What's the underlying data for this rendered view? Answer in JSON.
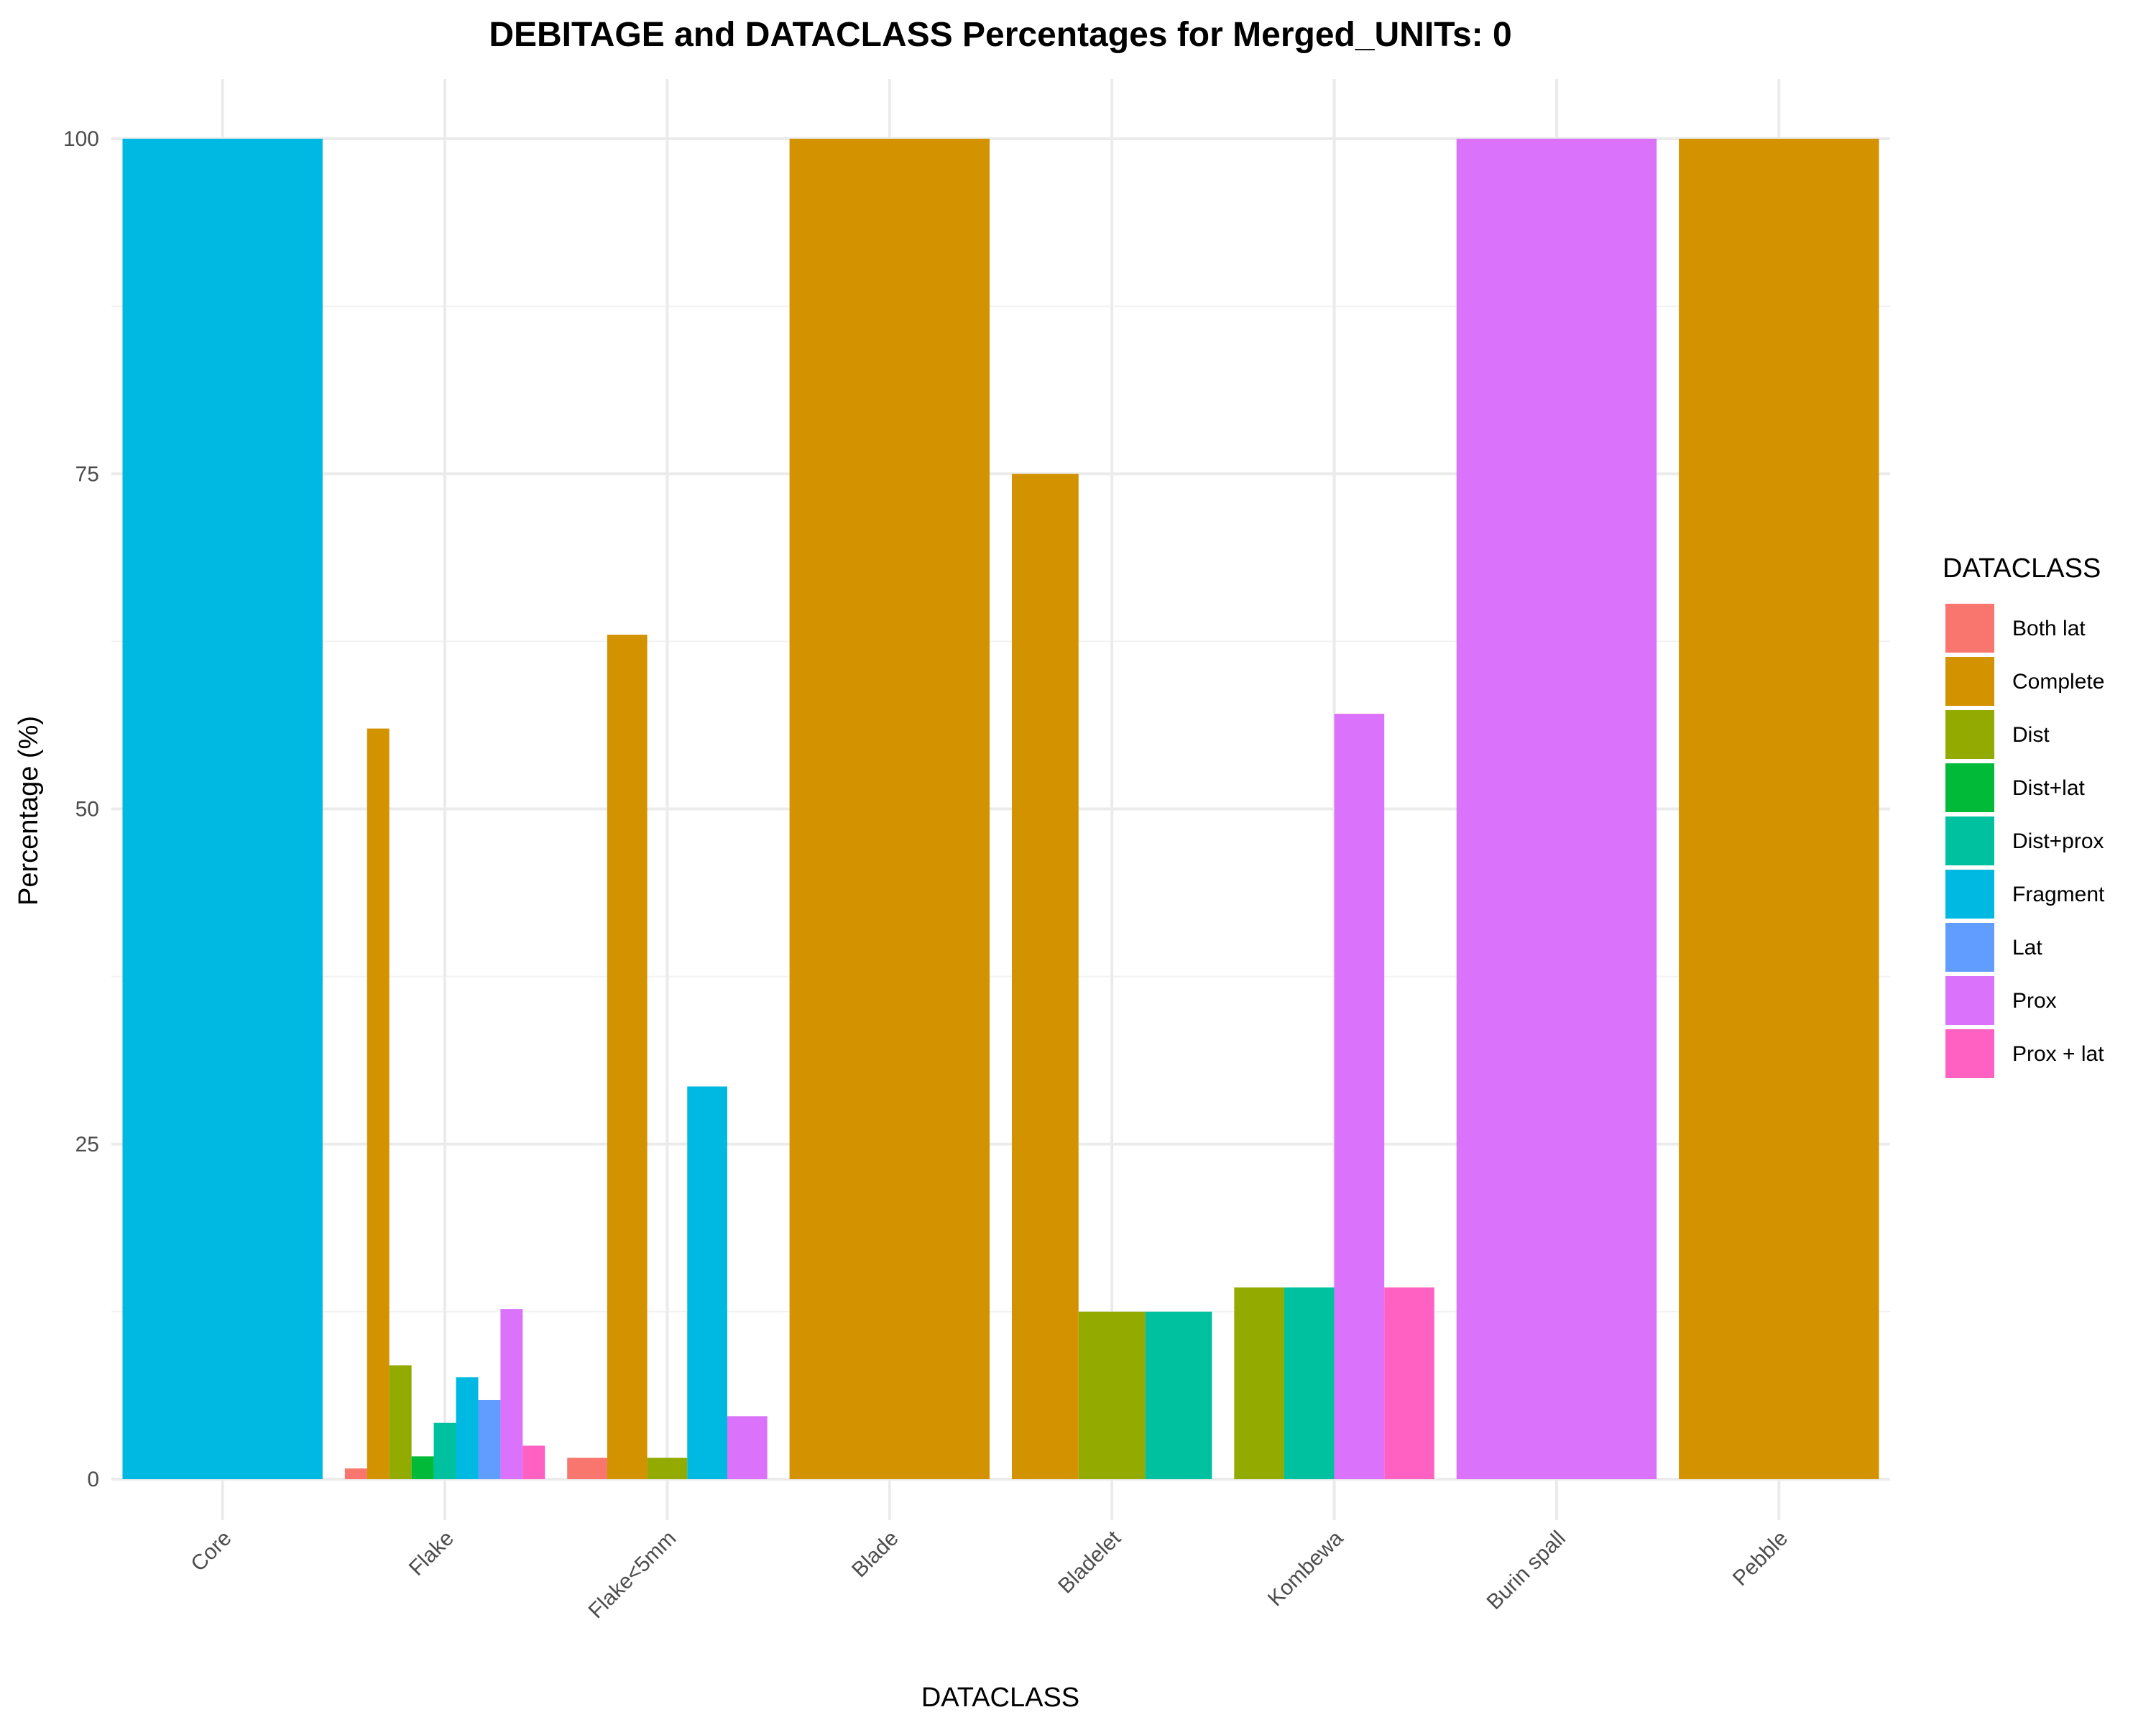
{
  "chart_data": {
    "type": "bar",
    "title": "DEBITAGE and DATACLASS Percentages for Merged_UNITs: 0",
    "xlabel": "DATACLASS",
    "ylabel": "Percentage (%)",
    "ylim": [
      0,
      100
    ],
    "yticks": [
      "0",
      "25",
      "50",
      "75",
      "100"
    ],
    "grid": true,
    "legend_title": "DATACLASS",
    "legend_position": "right",
    "categories": [
      "Core",
      "Flake",
      "Flake<5mm",
      "Blade",
      "Bladelet",
      "Kombewa",
      "Burin spall",
      "Pebble"
    ],
    "series": [
      {
        "name": "Both lat",
        "color": "#F8766D",
        "values": [
          null,
          0.8,
          1.6,
          null,
          null,
          null,
          null,
          null
        ]
      },
      {
        "name": "Complete",
        "color": "#D39200",
        "values": [
          null,
          56.0,
          63.0,
          100,
          75.0,
          null,
          null,
          100
        ]
      },
      {
        "name": "Dist",
        "color": "#93AA00",
        "values": [
          null,
          8.5,
          1.6,
          null,
          12.5,
          14.3,
          null,
          null
        ]
      },
      {
        "name": "Dist+lat",
        "color": "#00BA38",
        "values": [
          null,
          1.7,
          null,
          null,
          null,
          null,
          null,
          null
        ]
      },
      {
        "name": "Dist+prox",
        "color": "#00C19F",
        "values": [
          null,
          4.2,
          null,
          null,
          12.5,
          14.3,
          null,
          null
        ]
      },
      {
        "name": "Fragment",
        "color": "#00B9E3",
        "values": [
          100,
          7.6,
          29.3,
          null,
          null,
          null,
          null,
          null
        ]
      },
      {
        "name": "Lat",
        "color": "#619CFF",
        "values": [
          null,
          5.9,
          null,
          null,
          null,
          null,
          null,
          null
        ]
      },
      {
        "name": "Prox",
        "color": "#DB72FB",
        "values": [
          null,
          12.7,
          4.7,
          null,
          null,
          57.1,
          100,
          null
        ]
      },
      {
        "name": "Prox + lat",
        "color": "#FF61C3",
        "values": [
          null,
          2.5,
          null,
          null,
          null,
          14.3,
          null,
          null
        ]
      }
    ]
  }
}
